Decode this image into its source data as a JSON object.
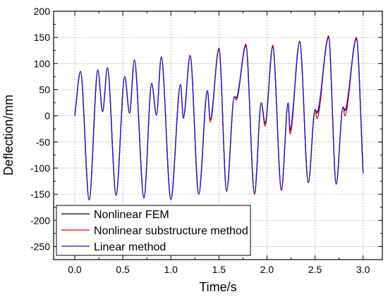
{
  "chart_data": {
    "type": "line",
    "title": "",
    "xlabel": "Time/s",
    "ylabel": "Deflection/mm",
    "xlim": [
      -0.22,
      3.2
    ],
    "ylim": [
      -275,
      200
    ],
    "xticks": [
      0.0,
      0.5,
      1.0,
      1.5,
      2.0,
      2.5,
      3.0
    ],
    "xtick_labels": [
      "0.0",
      "0.5",
      "1.0",
      "1.5",
      "2.0",
      "2.5",
      "3.0"
    ],
    "yticks": [
      -250,
      -200,
      -150,
      -100,
      -50,
      0,
      50,
      100,
      150,
      200
    ],
    "ytick_labels": [
      "-250",
      "-200",
      "-150",
      "-100",
      "-50",
      "0",
      "50",
      "100",
      "150",
      "200"
    ],
    "grid": true,
    "legend_position": "bottom-left",
    "colors": {
      "black": "#000000",
      "red": "#e00000",
      "blue": "#1414e6"
    },
    "series": [
      {
        "name": "Nonlinear FEM",
        "color": "#000000",
        "x": [
          0.0,
          0.06,
          0.15,
          0.24,
          0.29,
          0.34,
          0.43,
          0.52,
          0.57,
          0.62,
          0.72,
          0.8,
          0.85,
          0.9,
          1.0,
          1.1,
          1.13,
          1.2,
          1.29,
          1.38,
          1.41,
          1.5,
          1.58,
          1.66,
          1.68,
          1.78,
          1.87,
          1.94,
          1.98,
          2.06,
          2.15,
          2.22,
          2.24,
          2.34,
          2.43,
          2.5,
          2.52,
          2.64,
          2.72,
          2.79,
          2.81,
          2.93,
          3.0
        ],
        "y": [
          0,
          85,
          -161,
          88,
          8,
          92,
          -152,
          75,
          5,
          107,
          -157,
          62,
          1,
          113,
          -160,
          60,
          -3,
          115,
          -150,
          48,
          -7,
          128,
          -144,
          37,
          35,
          135,
          -149,
          25,
          -15,
          133,
          -142,
          25,
          -28,
          143,
          -128,
          12,
          5,
          151,
          -131,
          17,
          10,
          148,
          -110
        ]
      },
      {
        "name": "Nonlinear substructure method",
        "color": "#e00000",
        "x": [
          0.0,
          0.06,
          0.15,
          0.24,
          0.29,
          0.34,
          0.43,
          0.52,
          0.57,
          0.62,
          0.72,
          0.8,
          0.85,
          0.9,
          1.0,
          1.1,
          1.13,
          1.2,
          1.29,
          1.38,
          1.41,
          1.5,
          1.58,
          1.66,
          1.68,
          1.78,
          1.87,
          1.94,
          1.98,
          2.06,
          2.15,
          2.22,
          2.24,
          2.34,
          2.43,
          2.5,
          2.52,
          2.64,
          2.72,
          2.79,
          2.81,
          2.93,
          3.0
        ],
        "y": [
          0,
          85,
          -161,
          88,
          8,
          92,
          -152,
          75,
          5,
          107,
          -157,
          62,
          1,
          113,
          -160,
          60,
          -5,
          116,
          -150,
          48,
          -12,
          130,
          -145,
          37,
          30,
          137,
          -150,
          25,
          -20,
          135,
          -143,
          25,
          -35,
          143,
          -128,
          12,
          -5,
          153,
          -131,
          17,
          0,
          150,
          -110
        ]
      },
      {
        "name": "Linear method",
        "color": "#1414e6",
        "x": [
          0.0,
          0.06,
          0.15,
          0.24,
          0.29,
          0.34,
          0.43,
          0.52,
          0.57,
          0.62,
          0.72,
          0.8,
          0.85,
          0.9,
          1.0,
          1.1,
          1.13,
          1.2,
          1.29,
          1.38,
          1.41,
          1.5,
          1.58,
          1.66,
          1.68,
          1.78,
          1.87,
          1.94,
          1.98,
          2.06,
          2.15,
          2.22,
          2.24,
          2.34,
          2.43,
          2.5,
          2.52,
          2.64,
          2.72,
          2.79,
          2.81,
          2.93,
          3.0
        ],
        "y": [
          0,
          85,
          -161,
          88,
          8,
          92,
          -152,
          75,
          5,
          107,
          -157,
          62,
          1,
          113,
          -160,
          60,
          -3,
          114,
          -150,
          48,
          -6,
          127,
          -144,
          37,
          34,
          133,
          -148,
          25,
          -13,
          131,
          -141,
          25,
          -25,
          141,
          -127,
          12,
          8,
          149,
          -130,
          17,
          12,
          146,
          -110
        ]
      }
    ]
  }
}
